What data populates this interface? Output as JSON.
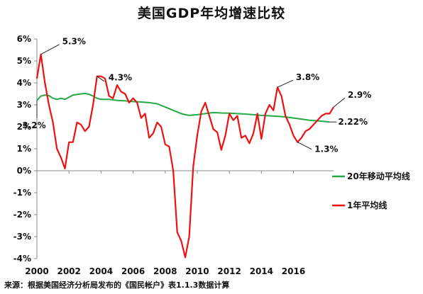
{
  "title": "美国GDP年均增速比较",
  "source": "来源：根据美国经济分析局发布的《国民帐户》表1.1.3数据计算",
  "chart_data": {
    "type": "line",
    "title": "美国GDP年均增速比较",
    "xlim": [
      2000,
      2018.5
    ],
    "ylim": [
      -4,
      6
    ],
    "x_ticks": [
      2000,
      2002,
      2004,
      2006,
      2008,
      2010,
      2012,
      2014,
      2016
    ],
    "x_tick_labels": [
      "2000",
      "2002",
      "2004",
      "2006",
      "2008",
      "2010",
      "2012",
      "2014",
      "2016"
    ],
    "y_ticks": [
      -4,
      -3,
      -2,
      -1,
      0,
      1,
      2,
      3,
      4,
      5,
      6
    ],
    "y_tick_labels": [
      "-4%",
      "-3%",
      "-2%",
      "-1%",
      "0%",
      "1%",
      "2%",
      "3%",
      "4%",
      "5%",
      "6%"
    ],
    "grid": false,
    "legend_position": "right",
    "colors": {
      "ma20": "#22aa44",
      "annual": "#ee1111",
      "axis": "#888888"
    },
    "series": [
      {
        "name": "20年移动平均线",
        "key": "ma20",
        "x": [
          2000,
          2000.25,
          2000.5,
          2000.75,
          2001,
          2001.25,
          2001.5,
          2001.75,
          2002,
          2002.25,
          2002.5,
          2002.75,
          2003,
          2003.25,
          2003.5,
          2003.75,
          2004,
          2004.5,
          2005,
          2005.5,
          2006,
          2006.5,
          2007,
          2007.5,
          2008,
          2008.5,
          2009,
          2009.25,
          2009.5,
          2010,
          2010.5,
          2011,
          2011.5,
          2012,
          2012.5,
          2013,
          2013.5,
          2014,
          2014.5,
          2015,
          2015.5,
          2016,
          2016.5,
          2017,
          2017.5,
          2018,
          2018.25
        ],
        "values": [
          3.2,
          3.4,
          3.45,
          3.42,
          3.3,
          3.25,
          3.3,
          3.25,
          3.35,
          3.45,
          3.47,
          3.5,
          3.52,
          3.48,
          3.4,
          3.3,
          3.25,
          3.25,
          3.2,
          3.18,
          3.15,
          3.13,
          3.1,
          3.05,
          2.9,
          2.75,
          2.6,
          2.55,
          2.52,
          2.55,
          2.6,
          2.65,
          2.63,
          2.62,
          2.6,
          2.58,
          2.55,
          2.52,
          2.5,
          2.48,
          2.45,
          2.4,
          2.35,
          2.3,
          2.27,
          2.24,
          2.22
        ]
      },
      {
        "name": "1年平均线",
        "key": "annual",
        "x": [
          2000,
          2000.25,
          2000.5,
          2000.75,
          2001,
          2001.25,
          2001.5,
          2001.75,
          2002,
          2002.25,
          2002.5,
          2002.75,
          2003,
          2003.25,
          2003.5,
          2003.75,
          2004,
          2004.25,
          2004.5,
          2004.75,
          2005,
          2005.25,
          2005.5,
          2005.75,
          2006,
          2006.25,
          2006.5,
          2006.75,
          2007,
          2007.25,
          2007.5,
          2007.75,
          2008,
          2008.25,
          2008.5,
          2008.75,
          2009,
          2009.25,
          2009.5,
          2009.75,
          2010,
          2010.25,
          2010.5,
          2010.75,
          2011,
          2011.25,
          2011.5,
          2011.75,
          2012,
          2012.25,
          2012.5,
          2012.75,
          2013,
          2013.25,
          2013.5,
          2013.75,
          2014,
          2014.25,
          2014.5,
          2014.75,
          2015,
          2015.25,
          2015.5,
          2015.75,
          2016,
          2016.25,
          2016.5,
          2016.75,
          2017,
          2017.25,
          2017.5,
          2017.75,
          2018,
          2018.25,
          2018.5
        ],
        "values": [
          4.2,
          5.3,
          4.0,
          3.0,
          2.2,
          1.0,
          0.6,
          0.1,
          1.3,
          1.3,
          2.2,
          2.1,
          1.8,
          2.0,
          3.0,
          4.3,
          4.3,
          4.2,
          3.4,
          3.3,
          3.9,
          3.6,
          3.5,
          3.1,
          3.3,
          3.1,
          2.4,
          2.6,
          1.5,
          1.7,
          2.2,
          2.0,
          1.2,
          1.1,
          0.0,
          -2.8,
          -3.2,
          -3.95,
          -3.0,
          0.2,
          1.6,
          2.7,
          3.1,
          2.5,
          1.9,
          1.75,
          0.95,
          1.6,
          2.6,
          2.3,
          2.5,
          1.5,
          1.6,
          1.25,
          1.7,
          2.6,
          1.45,
          2.6,
          3.0,
          2.75,
          3.8,
          3.4,
          2.5,
          2.1,
          1.6,
          1.3,
          1.5,
          1.8,
          1.9,
          2.1,
          2.3,
          2.5,
          2.6,
          2.6,
          2.9
        ]
      }
    ],
    "annotations": [
      {
        "text": "5.3%",
        "x": 2000.25,
        "y": 5.3,
        "target_series": "annual"
      },
      {
        "text": "4.3%",
        "x": 2003.75,
        "y": 4.3,
        "target_series": "annual"
      },
      {
        "text": "3.2%",
        "x": 2000,
        "y": 3.2,
        "target_series": "ma20"
      },
      {
        "text": "3.8%",
        "x": 2015,
        "y": 3.8,
        "target_series": "annual"
      },
      {
        "text": "1.3%",
        "x": 2016.25,
        "y": 1.3,
        "target_series": "annual"
      },
      {
        "text": "2.9%",
        "x": 2018.5,
        "y": 2.9,
        "target_series": "annual"
      },
      {
        "text": "2.22%",
        "x": 2018.25,
        "y": 2.22,
        "target_series": "ma20"
      }
    ]
  }
}
